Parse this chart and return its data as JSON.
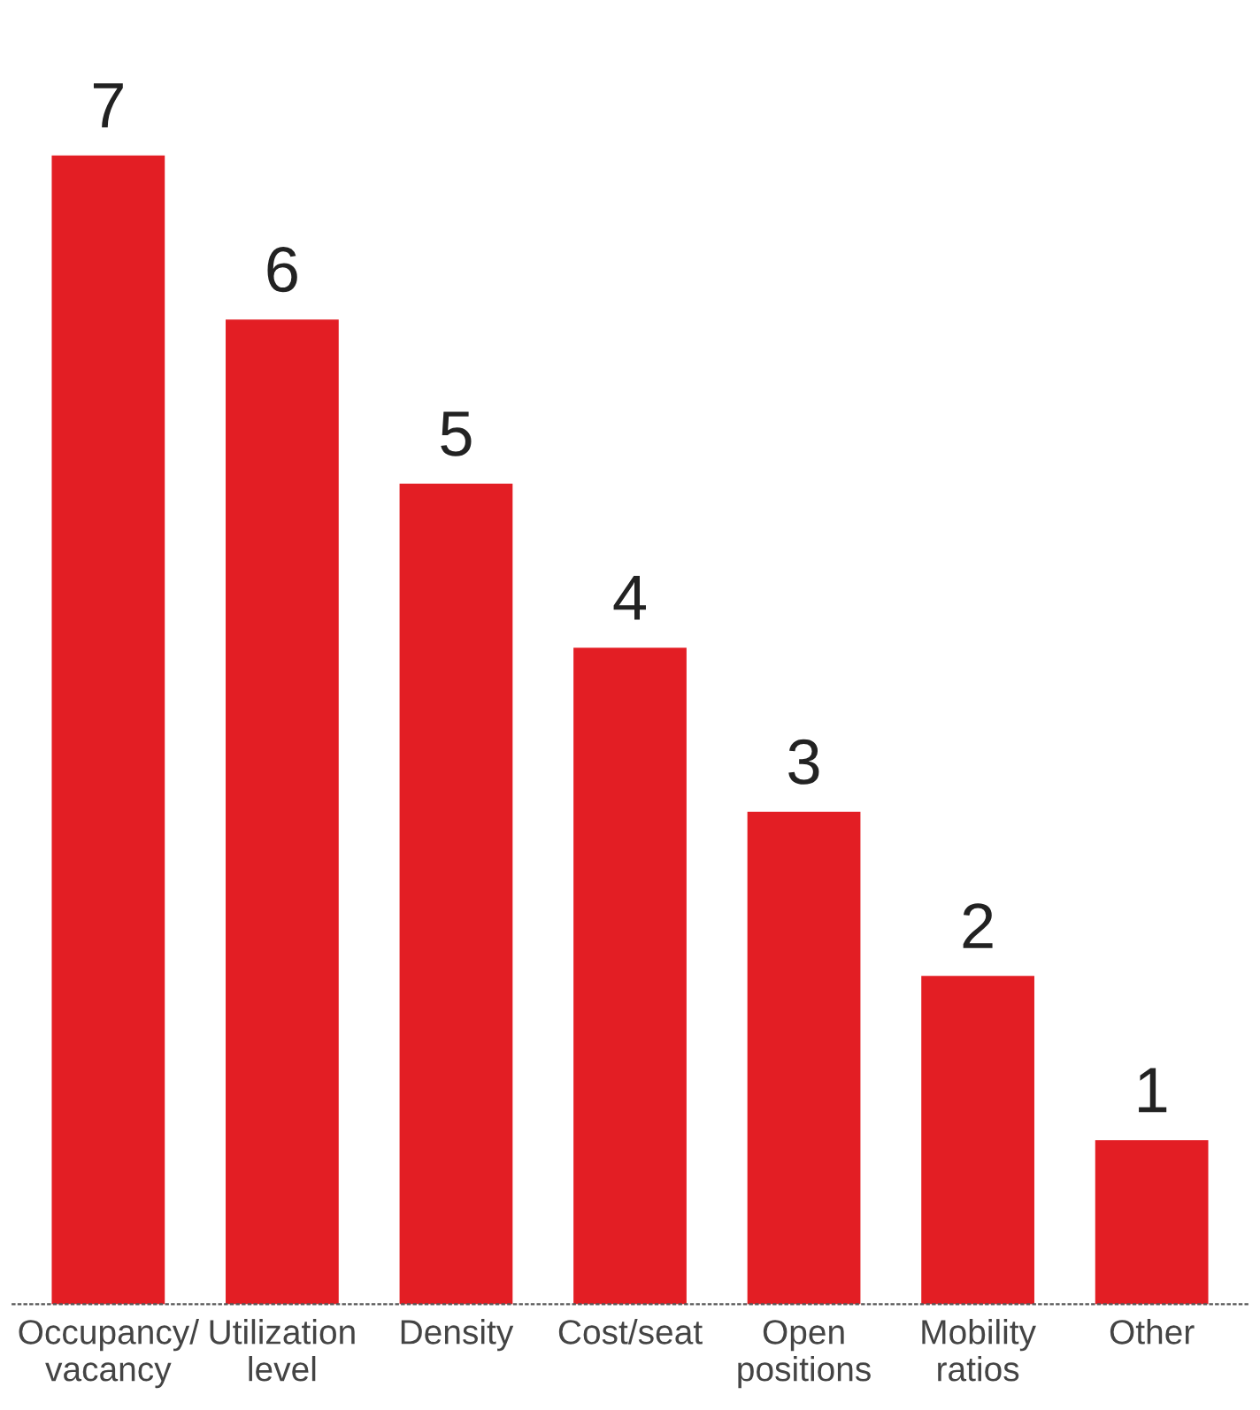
{
  "chart_data": {
    "type": "bar",
    "categories": [
      "Occupancy/\nvacancy",
      "Utilization\nlevel",
      "Density",
      "Cost/seat",
      "Open\npositions",
      "Mobility\nratios",
      "Other"
    ],
    "values": [
      7,
      6,
      5,
      4,
      3,
      2,
      1
    ],
    "data_labels": true,
    "color": "#e31e24",
    "grid": false,
    "legend": false
  }
}
